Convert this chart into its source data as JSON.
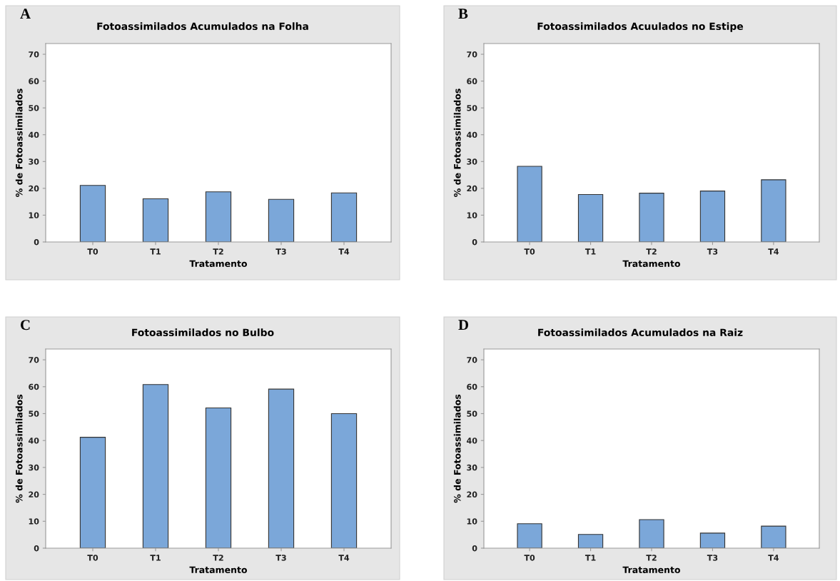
{
  "chart_data": [
    {
      "type": "bar",
      "title": "Fotoassimilados Acumulados na Folha",
      "xlabel": "Tratamento",
      "ylabel": "% de Fotoassimilados",
      "annotations": [
        "A"
      ],
      "categories": [
        "T0",
        "T1",
        "T2",
        "T3",
        "T4"
      ],
      "values": [
        21.1,
        16.1,
        18.7,
        15.9,
        18.3
      ],
      "color": "#7ba7d9",
      "ylim": [
        0,
        74
      ],
      "yticks": [
        0,
        10,
        20,
        30,
        40,
        50,
        60,
        70
      ],
      "grid": false
    },
    {
      "type": "bar",
      "title": "Fotoassimilados Acuulados no Estipe",
      "xlabel": "Tratamento",
      "ylabel": "% de Fotoassimilados",
      "annotations": [
        "B"
      ],
      "categories": [
        "T0",
        "T1",
        "T2",
        "T3",
        "T4"
      ],
      "values": [
        28.2,
        17.7,
        18.2,
        19.0,
        23.2
      ],
      "color": "#7ba7d9",
      "ylim": [
        0,
        74
      ],
      "yticks": [
        0,
        10,
        20,
        30,
        40,
        50,
        60,
        70
      ],
      "grid": false
    },
    {
      "type": "bar",
      "title": "Fotoassimilados no Bulbo",
      "xlabel": "Tratamento",
      "ylabel": "% de Fotoassimilados",
      "annotations": [
        "C"
      ],
      "categories": [
        "T0",
        "T1",
        "T2",
        "T3",
        "T4"
      ],
      "values": [
        41.2,
        60.8,
        52.1,
        59.1,
        50.0
      ],
      "color": "#7ba7d9",
      "ylim": [
        0,
        74
      ],
      "yticks": [
        0,
        10,
        20,
        30,
        40,
        50,
        60,
        70
      ],
      "grid": false
    },
    {
      "type": "bar",
      "title": "Fotoassimilados Acumulados na Raiz",
      "xlabel": "Tratamento",
      "ylabel": "% de Fotoassimilados",
      "annotations": [
        "D"
      ],
      "categories": [
        "T0",
        "T1",
        "T2",
        "T3",
        "T4"
      ],
      "values": [
        9.1,
        5.1,
        10.6,
        5.6,
        8.2
      ],
      "color": "#7ba7d9",
      "ylim": [
        0,
        74
      ],
      "yticks": [
        0,
        10,
        20,
        30,
        40,
        50,
        60,
        70
      ],
      "grid": false
    }
  ]
}
